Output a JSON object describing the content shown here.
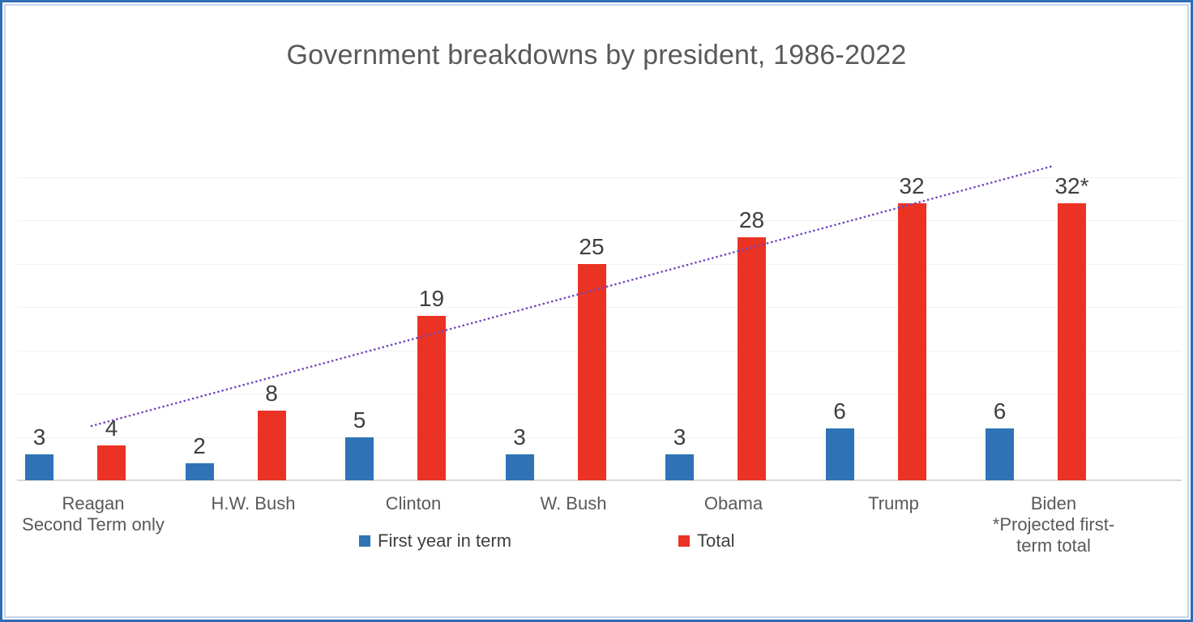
{
  "chart_data": {
    "type": "bar",
    "title": "Government breakdowns by president, 1986-2022",
    "categories": [
      [
        "Reagan",
        "Second Term only"
      ],
      [
        "H.W. Bush"
      ],
      [
        "Clinton"
      ],
      [
        "W. Bush"
      ],
      [
        "Obama"
      ],
      [
        "Trump"
      ],
      [
        "Biden",
        "*Projected first-",
        "term total"
      ]
    ],
    "series": [
      {
        "name": "First year in term",
        "color": "#2E73B5",
        "values": [
          3,
          2,
          5,
          3,
          3,
          6,
          6
        ],
        "labels": [
          "3",
          "2",
          "5",
          "3",
          "3",
          "6",
          "6"
        ]
      },
      {
        "name": "Total",
        "color": "#EA3323",
        "values": [
          4,
          8,
          19,
          25,
          28,
          32,
          32
        ],
        "labels": [
          "4",
          "8",
          "19",
          "25",
          "28",
          "32",
          "32*"
        ]
      }
    ],
    "trendline": {
      "applies_to": "Total",
      "style": "dotted",
      "color": "#7445BE"
    },
    "ylim": [
      0,
      35
    ],
    "gridlines": {
      "interval": 5
    },
    "legend_position": "bottom",
    "y_axis_labels_visible": false
  },
  "colors": {
    "frame_border": "#2E6DB4",
    "frame_border_inner": "#C6D5EE",
    "gridline": "#F2F2F2",
    "axis_line": "#D9D9D9",
    "title_text": "#595959",
    "category_text": "#595959",
    "data_label_text": "#3F3F3F"
  }
}
